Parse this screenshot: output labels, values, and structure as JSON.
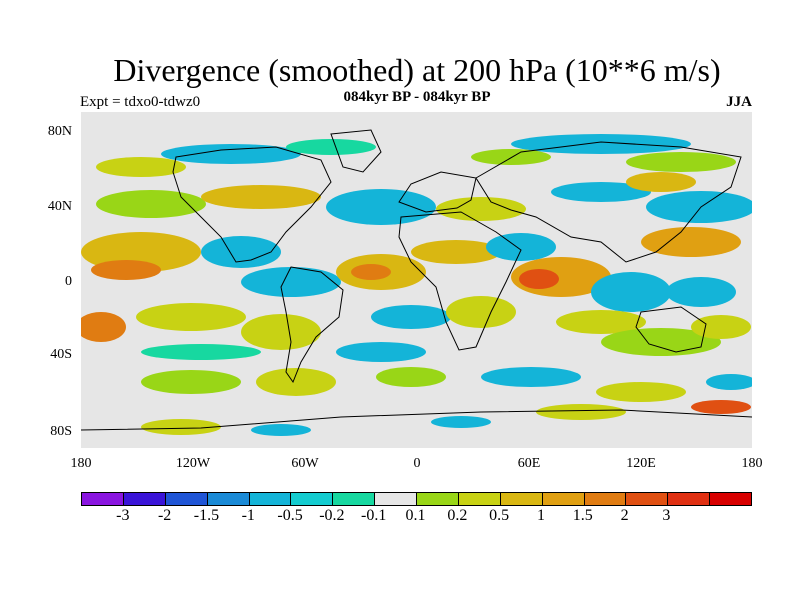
{
  "title": "Divergence (smoothed) at 200 hPa (10**6 m/s)",
  "subtitle": "084kyr BP - 084kyr BP",
  "experiment": "Expt = tdxo0-tdwz0",
  "season": "JJA",
  "lat_labels": [
    "80N",
    "40N",
    "0",
    "40S",
    "80S"
  ],
  "lon_labels": [
    "180",
    "120W",
    "60W",
    "0",
    "60E",
    "120E",
    "180"
  ],
  "colorbar": {
    "colors": [
      "#8a15e0",
      "#3a14d8",
      "#1f55d6",
      "#1a8ad6",
      "#14b4d8",
      "#14ccd0",
      "#17d8a0",
      "#e6e6e6",
      "#99d617",
      "#c8d214",
      "#d9b712",
      "#e0a012",
      "#e07c12",
      "#e05012",
      "#e03012",
      "#d80000"
    ],
    "labels": [
      "-3",
      "-2",
      "-1.5",
      "-1",
      "-0.5",
      "-0.2",
      "-0.1",
      "0.1",
      "0.2",
      "0.5",
      "1",
      "1.5",
      "2",
      "3"
    ]
  }
}
